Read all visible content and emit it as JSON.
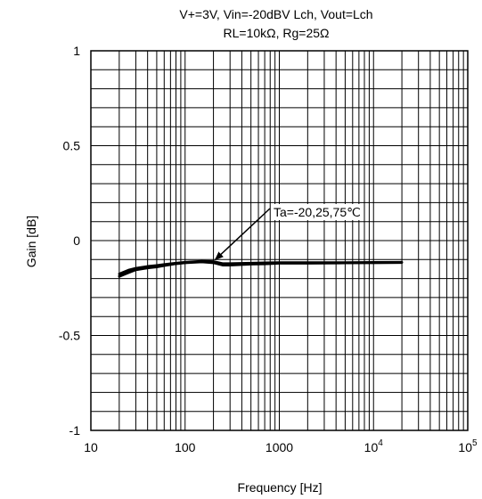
{
  "chart_data": {
    "type": "line",
    "title_lines": [
      "V+=3V, Vin=-20dBV Lch, Vout=Lch",
      "RL=10kΩ, Rg=25Ω"
    ],
    "xlabel": "Frequency [Hz]",
    "ylabel": "Gain [dB]",
    "x_scale": "log",
    "xlim": [
      10,
      100000
    ],
    "ylim": [
      -1,
      1
    ],
    "grid": true,
    "x_ticks": [
      {
        "value": 10,
        "base": "10",
        "exp": ""
      },
      {
        "value": 100,
        "base": "100",
        "exp": ""
      },
      {
        "value": 1000,
        "base": "1000",
        "exp": ""
      },
      {
        "value": 10000,
        "base": "10",
        "exp": "4"
      },
      {
        "value": 100000,
        "base": "10",
        "exp": "5"
      }
    ],
    "y_ticks": [
      {
        "value": 1,
        "label": "1"
      },
      {
        "value": 0.5,
        "label": "0.5"
      },
      {
        "value": 0,
        "label": "0"
      },
      {
        "value": -0.5,
        "label": "-0.5"
      },
      {
        "value": -1,
        "label": "-1"
      }
    ],
    "series": [
      {
        "color": "#000000",
        "x": [
          20,
          25,
          30,
          40,
          50,
          60,
          80,
          100,
          150,
          200,
          250,
          300,
          500,
          700,
          1000,
          2000,
          5000,
          10000,
          20000
        ],
        "y": [
          -0.185,
          -0.165,
          -0.15,
          -0.14,
          -0.135,
          -0.13,
          -0.12,
          -0.115,
          -0.11,
          -0.115,
          -0.125,
          -0.125,
          -0.12,
          -0.12,
          -0.118,
          -0.117,
          -0.117,
          -0.116,
          -0.115
        ]
      },
      {
        "color": "#000000",
        "x": [
          20,
          25,
          30,
          40,
          50,
          60,
          80,
          100,
          150,
          200,
          250,
          300,
          500,
          700,
          1000,
          2000,
          5000,
          10000,
          20000
        ],
        "y": [
          -0.175,
          -0.155,
          -0.145,
          -0.135,
          -0.13,
          -0.125,
          -0.118,
          -0.113,
          -0.108,
          -0.11,
          -0.12,
          -0.12,
          -0.118,
          -0.116,
          -0.115,
          -0.115,
          -0.115,
          -0.114,
          -0.113
        ]
      },
      {
        "color": "#000000",
        "x": [
          20,
          25,
          30,
          40,
          50,
          60,
          80,
          100,
          150,
          200,
          250,
          300,
          500,
          700,
          1000,
          2000,
          5000,
          10000,
          20000
        ],
        "y": [
          -0.19,
          -0.17,
          -0.155,
          -0.145,
          -0.14,
          -0.133,
          -0.123,
          -0.118,
          -0.113,
          -0.118,
          -0.13,
          -0.13,
          -0.125,
          -0.124,
          -0.12,
          -0.12,
          -0.119,
          -0.118,
          -0.117
        ]
      }
    ],
    "annotation": {
      "text": "Ta=-20,25,75℃",
      "target": {
        "x": 200,
        "y": -0.11
      }
    }
  }
}
